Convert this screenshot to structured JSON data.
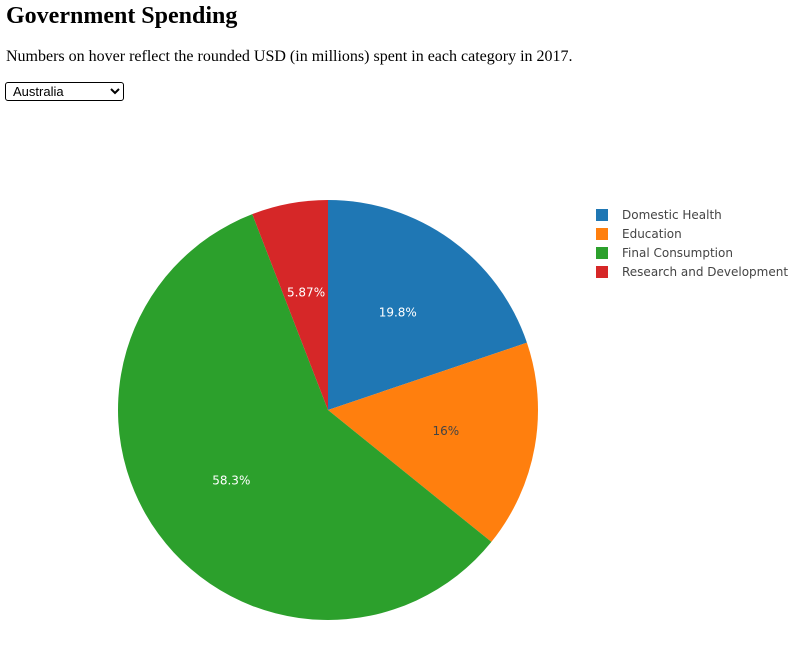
{
  "header": {
    "title": "Government Spending",
    "description": "Numbers on hover reflect the rounded USD (in millions) spent in each category in 2017."
  },
  "country_select": {
    "selected": "Australia",
    "options": [
      "Australia"
    ]
  },
  "chart_data": {
    "type": "pie",
    "title": "",
    "legend_position": "top-right",
    "direction": "clockwise",
    "start_angle_deg": 0,
    "categories": [
      "Domestic Health",
      "Education",
      "Final Consumption",
      "Research and Development"
    ],
    "values": [
      19.8,
      16,
      58.3,
      5.87
    ],
    "labels": [
      "19.8%",
      "16%",
      "58.3%",
      "5.87%"
    ],
    "colors": [
      "#1f77b4",
      "#ff7f0e",
      "#2ca02c",
      "#d62728"
    ],
    "label_colors": [
      "#ffffff",
      "#444444",
      "#ffffff",
      "#ffffff"
    ]
  }
}
